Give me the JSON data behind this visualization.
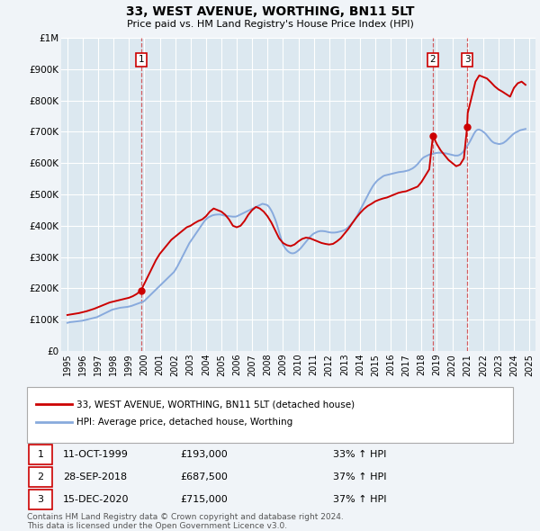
{
  "title": "33, WEST AVENUE, WORTHING, BN11 5LT",
  "subtitle": "Price paid vs. HM Land Registry's House Price Index (HPI)",
  "ylim": [
    0,
    1000000
  ],
  "yticks": [
    0,
    100000,
    200000,
    300000,
    400000,
    500000,
    600000,
    700000,
    800000,
    900000,
    1000000
  ],
  "ytick_labels": [
    "£0",
    "£100K",
    "£200K",
    "£300K",
    "£400K",
    "£500K",
    "£600K",
    "£700K",
    "£800K",
    "£900K",
    "£1M"
  ],
  "background_color": "#f0f4f8",
  "plot_bg_color": "#dce8f0",
  "grid_color": "#ffffff",
  "sale_dates": [
    1999.78,
    2018.74,
    2020.96
  ],
  "sale_prices": [
    193000,
    687500,
    715000
  ],
  "sale_labels": [
    "1",
    "2",
    "3"
  ],
  "vline_color": "#cc0000",
  "vline_alpha": 0.6,
  "red_line_color": "#cc0000",
  "blue_line_color": "#88aadd",
  "legend_label_red": "33, WEST AVENUE, WORTHING, BN11 5LT (detached house)",
  "legend_label_blue": "HPI: Average price, detached house, Worthing",
  "table_data": [
    [
      "1",
      "11-OCT-1999",
      "£193,000",
      "33% ↑ HPI"
    ],
    [
      "2",
      "28-SEP-2018",
      "£687,500",
      "37% ↑ HPI"
    ],
    [
      "3",
      "15-DEC-2020",
      "£715,000",
      "37% ↑ HPI"
    ]
  ],
  "footnote": "Contains HM Land Registry data © Crown copyright and database right 2024.\nThis data is licensed under the Open Government Licence v3.0.",
  "hpi_years": [
    1995.0,
    1995.083,
    1995.167,
    1995.25,
    1995.333,
    1995.417,
    1995.5,
    1995.583,
    1995.667,
    1995.75,
    1995.833,
    1995.917,
    1996.0,
    1996.083,
    1996.167,
    1996.25,
    1996.333,
    1996.417,
    1996.5,
    1996.583,
    1996.667,
    1996.75,
    1996.833,
    1996.917,
    1997.0,
    1997.083,
    1997.167,
    1997.25,
    1997.333,
    1997.417,
    1997.5,
    1997.583,
    1997.667,
    1997.75,
    1997.833,
    1997.917,
    1998.0,
    1998.083,
    1998.167,
    1998.25,
    1998.333,
    1998.417,
    1998.5,
    1998.583,
    1998.667,
    1998.75,
    1998.833,
    1998.917,
    1999.0,
    1999.083,
    1999.167,
    1999.25,
    1999.333,
    1999.417,
    1999.5,
    1999.583,
    1999.667,
    1999.75,
    1999.833,
    1999.917,
    2000.0,
    2000.083,
    2000.167,
    2000.25,
    2000.333,
    2000.417,
    2000.5,
    2000.583,
    2000.667,
    2000.75,
    2000.833,
    2000.917,
    2001.0,
    2001.083,
    2001.167,
    2001.25,
    2001.333,
    2001.417,
    2001.5,
    2001.583,
    2001.667,
    2001.75,
    2001.833,
    2001.917,
    2002.0,
    2002.083,
    2002.167,
    2002.25,
    2002.333,
    2002.417,
    2002.5,
    2002.583,
    2002.667,
    2002.75,
    2002.833,
    2002.917,
    2003.0,
    2003.083,
    2003.167,
    2003.25,
    2003.333,
    2003.417,
    2003.5,
    2003.583,
    2003.667,
    2003.75,
    2003.833,
    2003.917,
    2004.0,
    2004.083,
    2004.167,
    2004.25,
    2004.333,
    2004.417,
    2004.5,
    2004.583,
    2004.667,
    2004.75,
    2004.833,
    2004.917,
    2005.0,
    2005.083,
    2005.167,
    2005.25,
    2005.333,
    2005.417,
    2005.5,
    2005.583,
    2005.667,
    2005.75,
    2005.833,
    2005.917,
    2006.0,
    2006.083,
    2006.167,
    2006.25,
    2006.333,
    2006.417,
    2006.5,
    2006.583,
    2006.667,
    2006.75,
    2006.833,
    2006.917,
    2007.0,
    2007.083,
    2007.167,
    2007.25,
    2007.333,
    2007.417,
    2007.5,
    2007.583,
    2007.667,
    2007.75,
    2007.833,
    2007.917,
    2008.0,
    2008.083,
    2008.167,
    2008.25,
    2008.333,
    2008.417,
    2008.5,
    2008.583,
    2008.667,
    2008.75,
    2008.833,
    2008.917,
    2009.0,
    2009.083,
    2009.167,
    2009.25,
    2009.333,
    2009.417,
    2009.5,
    2009.583,
    2009.667,
    2009.75,
    2009.833,
    2009.917,
    2010.0,
    2010.083,
    2010.167,
    2010.25,
    2010.333,
    2010.417,
    2010.5,
    2010.583,
    2010.667,
    2010.75,
    2010.833,
    2010.917,
    2011.0,
    2011.083,
    2011.167,
    2011.25,
    2011.333,
    2011.417,
    2011.5,
    2011.583,
    2011.667,
    2011.75,
    2011.833,
    2011.917,
    2012.0,
    2012.083,
    2012.167,
    2012.25,
    2012.333,
    2012.417,
    2012.5,
    2012.583,
    2012.667,
    2012.75,
    2012.833,
    2012.917,
    2013.0,
    2013.083,
    2013.167,
    2013.25,
    2013.333,
    2013.417,
    2013.5,
    2013.583,
    2013.667,
    2013.75,
    2013.833,
    2013.917,
    2014.0,
    2014.083,
    2014.167,
    2014.25,
    2014.333,
    2014.417,
    2014.5,
    2014.583,
    2014.667,
    2014.75,
    2014.833,
    2014.917,
    2015.0,
    2015.083,
    2015.167,
    2015.25,
    2015.333,
    2015.417,
    2015.5,
    2015.583,
    2015.667,
    2015.75,
    2015.833,
    2015.917,
    2016.0,
    2016.083,
    2016.167,
    2016.25,
    2016.333,
    2016.417,
    2016.5,
    2016.583,
    2016.667,
    2016.75,
    2016.833,
    2016.917,
    2017.0,
    2017.083,
    2017.167,
    2017.25,
    2017.333,
    2017.417,
    2017.5,
    2017.583,
    2017.667,
    2017.75,
    2017.833,
    2017.917,
    2018.0,
    2018.083,
    2018.167,
    2018.25,
    2018.333,
    2018.417,
    2018.5,
    2018.583,
    2018.667,
    2018.75,
    2018.833,
    2018.917,
    2019.0,
    2019.083,
    2019.167,
    2019.25,
    2019.333,
    2019.417,
    2019.5,
    2019.583,
    2019.667,
    2019.75,
    2019.833,
    2019.917,
    2020.0,
    2020.083,
    2020.167,
    2020.25,
    2020.333,
    2020.417,
    2020.5,
    2020.583,
    2020.667,
    2020.75,
    2020.833,
    2020.917,
    2021.0,
    2021.083,
    2021.167,
    2021.25,
    2021.333,
    2021.417,
    2021.5,
    2021.583,
    2021.667,
    2021.75,
    2021.833,
    2021.917,
    2022.0,
    2022.083,
    2022.167,
    2022.25,
    2022.333,
    2022.417,
    2022.5,
    2022.583,
    2022.667,
    2022.75,
    2022.833,
    2022.917,
    2023.0,
    2023.083,
    2023.167,
    2023.25,
    2023.333,
    2023.417,
    2023.5,
    2023.583,
    2023.667,
    2023.75,
    2023.833,
    2023.917,
    2024.0,
    2024.083,
    2024.167,
    2024.25,
    2024.333,
    2024.417,
    2024.5,
    2024.583,
    2024.667,
    2024.75
  ],
  "hpi_values": [
    90000,
    91000,
    92000,
    92500,
    93000,
    93500,
    94000,
    94500,
    95000,
    95500,
    96000,
    96500,
    97000,
    98000,
    99000,
    100000,
    101000,
    102000,
    103000,
    104000,
    105000,
    106000,
    107000,
    108000,
    110000,
    112000,
    114000,
    116000,
    118000,
    120000,
    122000,
    124000,
    126000,
    128000,
    130000,
    132000,
    133000,
    134000,
    135000,
    136000,
    137000,
    138000,
    138500,
    139000,
    139500,
    140000,
    140500,
    141000,
    142000,
    143000,
    144000,
    145500,
    147000,
    148500,
    150000,
    151500,
    153000,
    154500,
    156000,
    157000,
    160000,
    164000,
    168000,
    172000,
    176000,
    180000,
    184000,
    188000,
    192000,
    196000,
    200000,
    204000,
    208000,
    212000,
    216000,
    220000,
    224000,
    228000,
    232000,
    236000,
    240000,
    244000,
    248000,
    252000,
    258000,
    265000,
    272000,
    280000,
    288000,
    296000,
    304000,
    312000,
    320000,
    328000,
    336000,
    344000,
    350000,
    356000,
    362000,
    368000,
    374000,
    380000,
    386000,
    392000,
    398000,
    404000,
    410000,
    416000,
    420000,
    424000,
    427000,
    429000,
    431000,
    433000,
    434000,
    435000,
    435500,
    435800,
    436000,
    436000,
    435000,
    434000,
    433000,
    432000,
    431500,
    431000,
    430500,
    430000,
    429500,
    429000,
    429000,
    429000,
    430000,
    432000,
    434000,
    436000,
    438000,
    440000,
    442000,
    444000,
    446000,
    448000,
    450000,
    452000,
    454000,
    456000,
    458000,
    460000,
    462000,
    464000,
    466000,
    468000,
    470000,
    469000,
    468000,
    467000,
    465000,
    461000,
    455000,
    448000,
    440000,
    430000,
    420000,
    408000,
    394000,
    380000,
    366000,
    352000,
    340000,
    333000,
    327000,
    322000,
    318000,
    315000,
    313000,
    312000,
    312000,
    313000,
    315000,
    318000,
    321000,
    325000,
    329000,
    334000,
    339000,
    344000,
    349000,
    354000,
    359000,
    364000,
    368000,
    372000,
    375000,
    377000,
    379000,
    381000,
    382000,
    383000,
    383000,
    383000,
    382500,
    382000,
    381000,
    380000,
    379000,
    378500,
    378000,
    378000,
    378000,
    378500,
    379000,
    380000,
    381000,
    382000,
    383000,
    384500,
    386000,
    389000,
    392000,
    396000,
    400000,
    404000,
    409000,
    414000,
    420000,
    426000,
    433000,
    441000,
    449000,
    457000,
    465000,
    473000,
    481000,
    489000,
    497000,
    505000,
    512000,
    519000,
    526000,
    532000,
    537000,
    542000,
    546000,
    549000,
    552000,
    555000,
    558000,
    560000,
    561000,
    562000,
    563000,
    564000,
    565000,
    566000,
    567000,
    568000,
    569000,
    570000,
    571000,
    571500,
    572000,
    572500,
    573000,
    574000,
    575000,
    576000,
    577000,
    579000,
    581000,
    583000,
    586000,
    589000,
    593000,
    597000,
    602000,
    607000,
    612000,
    616000,
    619000,
    621000,
    623000,
    625000,
    627000,
    628000,
    629000,
    630000,
    631000,
    632000,
    632500,
    633000,
    633000,
    633000,
    632500,
    632000,
    631500,
    631000,
    630000,
    629000,
    628000,
    627000,
    626000,
    625000,
    624000,
    624000,
    624000,
    625000,
    627000,
    630000,
    634000,
    639000,
    645000,
    651000,
    657000,
    664000,
    671000,
    679000,
    687000,
    695000,
    701000,
    705000,
    707000,
    707000,
    705000,
    703000,
    700000,
    697000,
    693000,
    688000,
    683000,
    678000,
    673000,
    669000,
    666000,
    664000,
    663000,
    662000,
    661000,
    661000,
    662000,
    663000,
    665000,
    668000,
    671000,
    675000,
    679000,
    683000,
    687000,
    691000,
    694000,
    697000,
    699000,
    701000,
    703000,
    705000,
    706000,
    707000,
    708000,
    709000
  ],
  "red_line_years": [
    1995.0,
    1995.25,
    1995.5,
    1995.75,
    1996.0,
    1996.25,
    1996.5,
    1996.75,
    1997.0,
    1997.25,
    1997.5,
    1997.75,
    1998.0,
    1998.25,
    1998.5,
    1998.75,
    1999.0,
    1999.25,
    1999.5,
    1999.78,
    2000.0,
    2000.25,
    2000.5,
    2000.75,
    2001.0,
    2001.25,
    2001.5,
    2001.75,
    2002.0,
    2002.25,
    2002.5,
    2002.75,
    2003.0,
    2003.25,
    2003.5,
    2003.75,
    2004.0,
    2004.25,
    2004.5,
    2004.75,
    2005.0,
    2005.25,
    2005.5,
    2005.75,
    2006.0,
    2006.25,
    2006.5,
    2006.75,
    2007.0,
    2007.25,
    2007.5,
    2007.75,
    2008.0,
    2008.25,
    2008.5,
    2008.75,
    2009.0,
    2009.25,
    2009.5,
    2009.75,
    2010.0,
    2010.25,
    2010.5,
    2010.75,
    2011.0,
    2011.25,
    2011.5,
    2011.75,
    2012.0,
    2012.25,
    2012.5,
    2012.75,
    2013.0,
    2013.25,
    2013.5,
    2013.75,
    2014.0,
    2014.25,
    2014.5,
    2014.75,
    2015.0,
    2015.25,
    2015.5,
    2015.75,
    2016.0,
    2016.25,
    2016.5,
    2016.75,
    2017.0,
    2017.25,
    2017.5,
    2017.75,
    2018.0,
    2018.25,
    2018.5,
    2018.74,
    2019.0,
    2019.25,
    2019.5,
    2019.75,
    2020.0,
    2020.25,
    2020.5,
    2020.75,
    2020.96,
    2021.0,
    2021.25,
    2021.5,
    2021.75,
    2022.0,
    2022.25,
    2022.5,
    2022.75,
    2023.0,
    2023.25,
    2023.5,
    2023.75,
    2024.0,
    2024.25,
    2024.5,
    2024.75
  ],
  "red_line_values": [
    115000,
    117000,
    119000,
    121000,
    124000,
    127000,
    131000,
    135000,
    140000,
    145000,
    150000,
    155000,
    158000,
    161000,
    164000,
    167000,
    170000,
    175000,
    182000,
    193000,
    215000,
    240000,
    265000,
    290000,
    310000,
    325000,
    340000,
    355000,
    365000,
    375000,
    385000,
    395000,
    400000,
    408000,
    415000,
    420000,
    430000,
    445000,
    455000,
    450000,
    445000,
    435000,
    420000,
    400000,
    395000,
    400000,
    415000,
    435000,
    450000,
    460000,
    455000,
    445000,
    430000,
    410000,
    385000,
    360000,
    345000,
    338000,
    335000,
    340000,
    350000,
    358000,
    362000,
    360000,
    355000,
    350000,
    345000,
    342000,
    340000,
    342000,
    350000,
    360000,
    375000,
    390000,
    408000,
    425000,
    440000,
    453000,
    463000,
    470000,
    478000,
    483000,
    487000,
    490000,
    495000,
    500000,
    505000,
    508000,
    510000,
    515000,
    520000,
    525000,
    540000,
    560000,
    580000,
    687500,
    660000,
    640000,
    625000,
    610000,
    600000,
    590000,
    595000,
    615000,
    715000,
    760000,
    810000,
    860000,
    880000,
    875000,
    870000,
    858000,
    845000,
    835000,
    828000,
    820000,
    812000,
    840000,
    855000,
    860000,
    850000
  ],
  "xlim": [
    1994.6,
    2025.4
  ],
  "xticks": [
    1995,
    1996,
    1997,
    1998,
    1999,
    2000,
    2001,
    2002,
    2003,
    2004,
    2005,
    2006,
    2007,
    2008,
    2009,
    2010,
    2011,
    2012,
    2013,
    2014,
    2015,
    2016,
    2017,
    2018,
    2019,
    2020,
    2021,
    2022,
    2023,
    2024,
    2025
  ]
}
